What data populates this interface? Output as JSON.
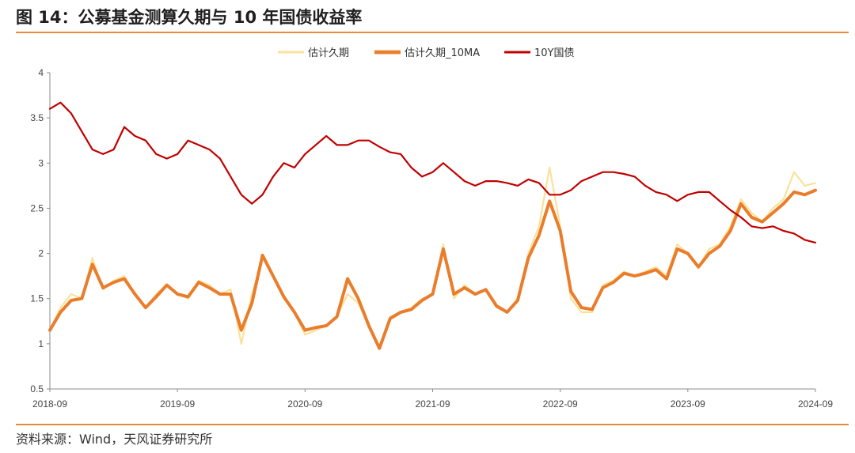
{
  "header": {
    "title": "图 14：公募基金测算久期与 10 年国债收益率"
  },
  "footer": {
    "source": "资料来源：Wind，天风证券研究所"
  },
  "colors": {
    "accent": "#e88a3c",
    "estimate": "#fbe19b",
    "estimate_ma": "#ea7d2c",
    "bond": "#c00000"
  },
  "chart_data": {
    "type": "line",
    "title": "",
    "xlabel": "",
    "ylabel": "",
    "ylim": [
      0.5,
      4
    ],
    "yticks": [
      "0.5",
      "1",
      "1.5",
      "2",
      "2.5",
      "3",
      "3.5",
      "4"
    ],
    "xticks": [
      "2018-09",
      "2019-09",
      "2020-09",
      "2021-09",
      "2022-09",
      "2023-09",
      "2024-09"
    ],
    "grid": false,
    "legend_position": "top",
    "series": [
      {
        "name": "估计久期",
        "color": "#fbe19b",
        "points": [
          [
            "2018-09",
            1.15
          ],
          [
            "2018-10",
            1.4
          ],
          [
            "2018-11",
            1.55
          ],
          [
            "2018-12",
            1.5
          ],
          [
            "2019-01",
            1.95
          ],
          [
            "2019-02",
            1.6
          ],
          [
            "2019-03",
            1.7
          ],
          [
            "2019-04",
            1.75
          ],
          [
            "2019-05",
            1.55
          ],
          [
            "2019-06",
            1.4
          ],
          [
            "2019-07",
            1.55
          ],
          [
            "2019-08",
            1.65
          ],
          [
            "2019-09",
            1.55
          ],
          [
            "2019-10",
            1.5
          ],
          [
            "2019-11",
            1.7
          ],
          [
            "2019-12",
            1.65
          ],
          [
            "2020-01",
            1.55
          ],
          [
            "2020-02",
            1.6
          ],
          [
            "2020-03",
            1.0
          ],
          [
            "2020-04",
            1.55
          ],
          [
            "2020-05",
            1.95
          ],
          [
            "2020-06",
            1.75
          ],
          [
            "2020-07",
            1.5
          ],
          [
            "2020-08",
            1.35
          ],
          [
            "2020-09",
            1.1
          ],
          [
            "2020-10",
            1.15
          ],
          [
            "2020-11",
            1.2
          ],
          [
            "2020-12",
            1.3
          ],
          [
            "2021-01",
            1.55
          ],
          [
            "2021-02",
            1.45
          ],
          [
            "2021-03",
            1.2
          ],
          [
            "2021-04",
            0.95
          ],
          [
            "2021-05",
            1.3
          ],
          [
            "2021-06",
            1.35
          ],
          [
            "2021-07",
            1.4
          ],
          [
            "2021-08",
            1.5
          ],
          [
            "2021-09",
            1.55
          ],
          [
            "2021-10",
            2.1
          ],
          [
            "2021-11",
            1.5
          ],
          [
            "2021-12",
            1.65
          ],
          [
            "2022-01",
            1.55
          ],
          [
            "2022-02",
            1.6
          ],
          [
            "2022-03",
            1.4
          ],
          [
            "2022-04",
            1.35
          ],
          [
            "2022-05",
            1.5
          ],
          [
            "2022-06",
            2.0
          ],
          [
            "2022-07",
            2.3
          ],
          [
            "2022-08",
            2.95
          ],
          [
            "2022-09",
            2.3
          ],
          [
            "2022-10",
            1.5
          ],
          [
            "2022-11",
            1.35
          ],
          [
            "2022-12",
            1.35
          ],
          [
            "2023-01",
            1.65
          ],
          [
            "2023-02",
            1.7
          ],
          [
            "2023-03",
            1.8
          ],
          [
            "2023-04",
            1.75
          ],
          [
            "2023-05",
            1.8
          ],
          [
            "2023-06",
            1.85
          ],
          [
            "2023-07",
            1.75
          ],
          [
            "2023-08",
            2.1
          ],
          [
            "2023-09",
            2.0
          ],
          [
            "2023-10",
            1.85
          ],
          [
            "2023-11",
            2.05
          ],
          [
            "2023-12",
            2.1
          ],
          [
            "2024-01",
            2.3
          ],
          [
            "2024-02",
            2.6
          ],
          [
            "2024-03",
            2.45
          ],
          [
            "2024-04",
            2.35
          ],
          [
            "2024-05",
            2.5
          ],
          [
            "2024-06",
            2.6
          ],
          [
            "2024-07",
            2.9
          ],
          [
            "2024-08",
            2.75
          ],
          [
            "2024-09",
            2.78
          ]
        ]
      },
      {
        "name": "估计久期_10MA",
        "color": "#ea7d2c",
        "points": [
          [
            "2018-09",
            1.15
          ],
          [
            "2018-10",
            1.35
          ],
          [
            "2018-11",
            1.48
          ],
          [
            "2018-12",
            1.5
          ],
          [
            "2019-01",
            1.88
          ],
          [
            "2019-02",
            1.62
          ],
          [
            "2019-03",
            1.68
          ],
          [
            "2019-04",
            1.72
          ],
          [
            "2019-05",
            1.55
          ],
          [
            "2019-06",
            1.4
          ],
          [
            "2019-07",
            1.52
          ],
          [
            "2019-08",
            1.65
          ],
          [
            "2019-09",
            1.55
          ],
          [
            "2019-10",
            1.52
          ],
          [
            "2019-11",
            1.68
          ],
          [
            "2019-12",
            1.62
          ],
          [
            "2020-01",
            1.55
          ],
          [
            "2020-02",
            1.55
          ],
          [
            "2020-03",
            1.15
          ],
          [
            "2020-04",
            1.45
          ],
          [
            "2020-05",
            1.98
          ],
          [
            "2020-06",
            1.75
          ],
          [
            "2020-07",
            1.52
          ],
          [
            "2020-08",
            1.35
          ],
          [
            "2020-09",
            1.15
          ],
          [
            "2020-10",
            1.18
          ],
          [
            "2020-11",
            1.2
          ],
          [
            "2020-12",
            1.3
          ],
          [
            "2021-01",
            1.72
          ],
          [
            "2021-02",
            1.5
          ],
          [
            "2021-03",
            1.2
          ],
          [
            "2021-04",
            0.95
          ],
          [
            "2021-05",
            1.28
          ],
          [
            "2021-06",
            1.35
          ],
          [
            "2021-07",
            1.38
          ],
          [
            "2021-08",
            1.48
          ],
          [
            "2021-09",
            1.55
          ],
          [
            "2021-10",
            2.05
          ],
          [
            "2021-11",
            1.55
          ],
          [
            "2021-12",
            1.62
          ],
          [
            "2022-01",
            1.55
          ],
          [
            "2022-02",
            1.6
          ],
          [
            "2022-03",
            1.42
          ],
          [
            "2022-04",
            1.35
          ],
          [
            "2022-05",
            1.48
          ],
          [
            "2022-06",
            1.95
          ],
          [
            "2022-07",
            2.2
          ],
          [
            "2022-08",
            2.58
          ],
          [
            "2022-09",
            2.25
          ],
          [
            "2022-10",
            1.58
          ],
          [
            "2022-11",
            1.4
          ],
          [
            "2022-12",
            1.38
          ],
          [
            "2023-01",
            1.62
          ],
          [
            "2023-02",
            1.68
          ],
          [
            "2023-03",
            1.78
          ],
          [
            "2023-04",
            1.75
          ],
          [
            "2023-05",
            1.78
          ],
          [
            "2023-06",
            1.82
          ],
          [
            "2023-07",
            1.72
          ],
          [
            "2023-08",
            2.05
          ],
          [
            "2023-09",
            2.0
          ],
          [
            "2023-10",
            1.85
          ],
          [
            "2023-11",
            2.0
          ],
          [
            "2023-12",
            2.08
          ],
          [
            "2024-01",
            2.25
          ],
          [
            "2024-02",
            2.55
          ],
          [
            "2024-03",
            2.4
          ],
          [
            "2024-04",
            2.35
          ],
          [
            "2024-05",
            2.45
          ],
          [
            "2024-06",
            2.55
          ],
          [
            "2024-07",
            2.68
          ],
          [
            "2024-08",
            2.65
          ],
          [
            "2024-09",
            2.7
          ]
        ]
      },
      {
        "name": "10Y国债",
        "color": "#c00000",
        "points": [
          [
            "2018-09",
            3.6
          ],
          [
            "2018-10",
            3.67
          ],
          [
            "2018-11",
            3.55
          ],
          [
            "2018-12",
            3.35
          ],
          [
            "2019-01",
            3.15
          ],
          [
            "2019-02",
            3.1
          ],
          [
            "2019-03",
            3.15
          ],
          [
            "2019-04",
            3.4
          ],
          [
            "2019-05",
            3.3
          ],
          [
            "2019-06",
            3.25
          ],
          [
            "2019-07",
            3.1
          ],
          [
            "2019-08",
            3.05
          ],
          [
            "2019-09",
            3.1
          ],
          [
            "2019-10",
            3.25
          ],
          [
            "2019-11",
            3.2
          ],
          [
            "2019-12",
            3.15
          ],
          [
            "2020-01",
            3.05
          ],
          [
            "2020-02",
            2.85
          ],
          [
            "2020-03",
            2.65
          ],
          [
            "2020-04",
            2.55
          ],
          [
            "2020-05",
            2.65
          ],
          [
            "2020-06",
            2.85
          ],
          [
            "2020-07",
            3.0
          ],
          [
            "2020-08",
            2.95
          ],
          [
            "2020-09",
            3.1
          ],
          [
            "2020-10",
            3.2
          ],
          [
            "2020-11",
            3.3
          ],
          [
            "2020-12",
            3.2
          ],
          [
            "2021-01",
            3.2
          ],
          [
            "2021-02",
            3.25
          ],
          [
            "2021-03",
            3.25
          ],
          [
            "2021-04",
            3.18
          ],
          [
            "2021-05",
            3.12
          ],
          [
            "2021-06",
            3.1
          ],
          [
            "2021-07",
            2.95
          ],
          [
            "2021-08",
            2.85
          ],
          [
            "2021-09",
            2.9
          ],
          [
            "2021-10",
            3.0
          ],
          [
            "2021-11",
            2.9
          ],
          [
            "2021-12",
            2.8
          ],
          [
            "2022-01",
            2.75
          ],
          [
            "2022-02",
            2.8
          ],
          [
            "2022-03",
            2.8
          ],
          [
            "2022-04",
            2.78
          ],
          [
            "2022-05",
            2.75
          ],
          [
            "2022-06",
            2.82
          ],
          [
            "2022-07",
            2.78
          ],
          [
            "2022-08",
            2.65
          ],
          [
            "2022-09",
            2.65
          ],
          [
            "2022-10",
            2.7
          ],
          [
            "2022-11",
            2.8
          ],
          [
            "2022-12",
            2.85
          ],
          [
            "2023-01",
            2.9
          ],
          [
            "2023-02",
            2.9
          ],
          [
            "2023-03",
            2.88
          ],
          [
            "2023-04",
            2.85
          ],
          [
            "2023-05",
            2.75
          ],
          [
            "2023-06",
            2.68
          ],
          [
            "2023-07",
            2.65
          ],
          [
            "2023-08",
            2.58
          ],
          [
            "2023-09",
            2.65
          ],
          [
            "2023-10",
            2.68
          ],
          [
            "2023-11",
            2.68
          ],
          [
            "2023-12",
            2.58
          ],
          [
            "2024-01",
            2.48
          ],
          [
            "2024-02",
            2.4
          ],
          [
            "2024-03",
            2.3
          ],
          [
            "2024-04",
            2.28
          ],
          [
            "2024-05",
            2.3
          ],
          [
            "2024-06",
            2.25
          ],
          [
            "2024-07",
            2.22
          ],
          [
            "2024-08",
            2.15
          ],
          [
            "2024-09",
            2.12
          ]
        ]
      }
    ]
  }
}
